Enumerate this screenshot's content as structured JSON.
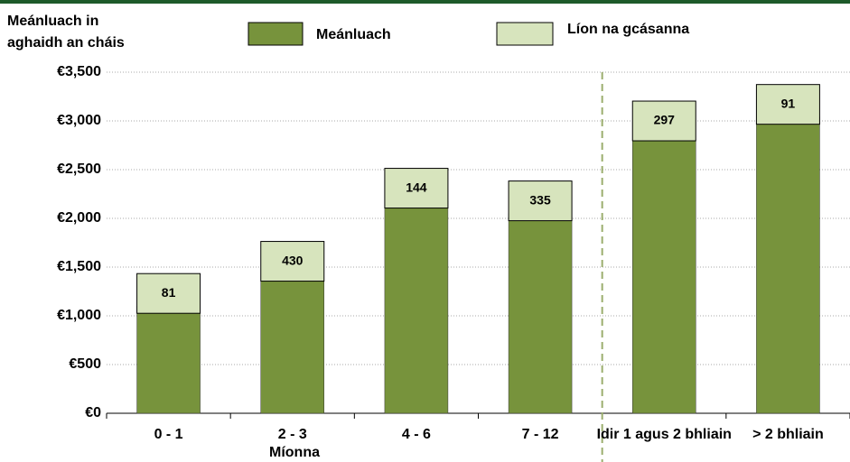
{
  "chart_data": {
    "type": "bar",
    "title": [
      "Meánluach in",
      "aghaidh an cháis"
    ],
    "x_label": "Míonna",
    "categories": [
      "0 - 1",
      "2 - 3",
      "4 - 6",
      "7 - 12",
      "Idir 1 agus 2 bhliain",
      "> 2 bhliain"
    ],
    "series": [
      {
        "name": "Meánluach",
        "color": "#77933c",
        "values": [
          1100,
          1430,
          2180,
          2050,
          2870,
          3040
        ]
      },
      {
        "name": "Líon na gcásanna",
        "color": "#d7e4bd",
        "values": [
          81,
          430,
          144,
          335,
          297,
          91
        ]
      }
    ],
    "ylim": [
      0,
      3500
    ],
    "yticks": [
      {
        "value": 0,
        "label": "€0"
      },
      {
        "value": 500,
        "label": "€500"
      },
      {
        "value": 1000,
        "label": "€1,000"
      },
      {
        "value": 1500,
        "label": "€1,500"
      },
      {
        "value": 2000,
        "label": "€2,000"
      },
      {
        "value": 2500,
        "label": "€2,500"
      },
      {
        "value": 3000,
        "label": "€3,000"
      },
      {
        "value": 3500,
        "label": "€3,500"
      }
    ],
    "grid": true
  }
}
